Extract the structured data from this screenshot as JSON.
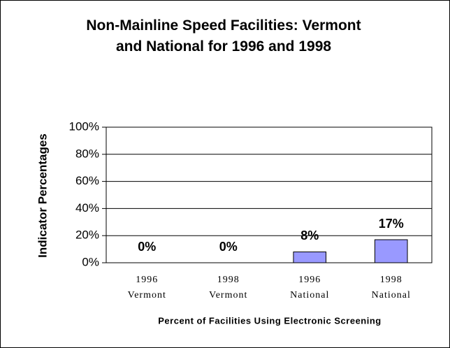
{
  "chart_data": {
    "type": "bar",
    "title": "Non-Mainline Speed Facilities: Vermont and National for 1996 and 1998",
    "categories": [
      [
        "1996",
        "Vermont"
      ],
      [
        "1998",
        "Vermont"
      ],
      [
        "1996",
        "National"
      ],
      [
        "1998",
        "National"
      ]
    ],
    "values": [
      0,
      0,
      8,
      17
    ],
    "value_labels": [
      "0%",
      "0%",
      "8%",
      "17%"
    ],
    "color": "#9999ff",
    "y_label": "Indicator Percentages",
    "x_label": "Percent of Facilities Using Electronic Screening",
    "ylim": [
      0,
      100
    ],
    "yticks": [
      {
        "value": 0,
        "label": "0%"
      },
      {
        "value": 20,
        "label": "20%"
      },
      {
        "value": 40,
        "label": "40%"
      },
      {
        "value": 60,
        "label": "60%"
      },
      {
        "value": 80,
        "label": "80%"
      },
      {
        "value": 100,
        "label": "100%"
      }
    ],
    "grid": true
  }
}
